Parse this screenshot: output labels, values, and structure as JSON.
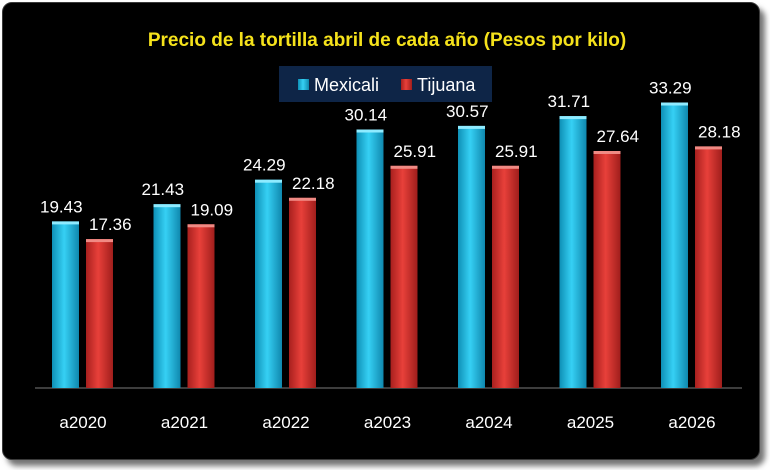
{
  "chart_data": {
    "type": "bar",
    "title": "Precio de la tortilla abril de cada año (Pesos por kilo)",
    "categories": [
      "a2020",
      "a2021",
      "a2022",
      "a2023",
      "a2024",
      "a2025",
      "a2026"
    ],
    "series": [
      {
        "name": "Mexicali",
        "values": [
          19.43,
          21.43,
          24.29,
          30.14,
          30.57,
          31.71,
          33.29
        ],
        "color": "#1FC0E8"
      },
      {
        "name": "Tijuana",
        "values": [
          17.36,
          19.09,
          22.18,
          25.91,
          25.91,
          27.64,
          28.18
        ],
        "color": "#D9332F"
      }
    ],
    "value_labels": [
      [
        "19.43",
        "21.43",
        "24.29",
        "30.14",
        "30.57",
        "31.71",
        "33.29"
      ],
      [
        "17.36",
        "19.09",
        "22.18",
        "25.91",
        "25.91",
        "27.64",
        "28.18"
      ]
    ],
    "xlabel": "",
    "ylabel": "",
    "ylim": [
      0,
      40
    ],
    "grid": false,
    "legend_position": "top-center",
    "title_color": "#F5E21B",
    "background": "#000000",
    "legend_background": "#0E2547"
  }
}
